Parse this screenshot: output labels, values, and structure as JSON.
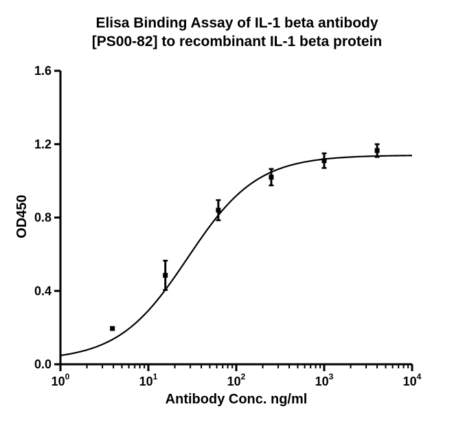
{
  "chart_data": {
    "type": "scatter",
    "title_lines": [
      "Elisa Binding Assay of IL-1 beta antibody",
      "[PS00-82] to recombinant IL-1 beta protein"
    ],
    "xlabel": "Antibody Conc. ng/ml",
    "ylabel": "OD450",
    "x_scale": "log10",
    "xlim": [
      1,
      10000
    ],
    "ylim": [
      0,
      1.6
    ],
    "x_ticks": [
      {
        "base": "10",
        "exp": "0",
        "value": 1
      },
      {
        "base": "10",
        "exp": "1",
        "value": 10
      },
      {
        "base": "10",
        "exp": "2",
        "value": 100
      },
      {
        "base": "10",
        "exp": "3",
        "value": 1000
      },
      {
        "base": "10",
        "exp": "4",
        "value": 10000
      }
    ],
    "y_ticks": [
      {
        "label": "0.0",
        "value": 0
      },
      {
        "label": "0.4",
        "value": 0.4
      },
      {
        "label": "0.8",
        "value": 0.8
      },
      {
        "label": "1.2",
        "value": 1.2
      },
      {
        "label": "1.6",
        "value": 1.6
      }
    ],
    "points": [
      {
        "x": 3.9,
        "y": 0.195,
        "err": 0.008
      },
      {
        "x": 15.6,
        "y": 0.485,
        "err": 0.08
      },
      {
        "x": 62.5,
        "y": 0.84,
        "err": 0.055
      },
      {
        "x": 250,
        "y": 1.02,
        "err": 0.045
      },
      {
        "x": 1000,
        "y": 1.11,
        "err": 0.04
      },
      {
        "x": 4000,
        "y": 1.165,
        "err": 0.035
      }
    ],
    "fit_curve": {
      "bottom": 0.02,
      "top": 1.14,
      "ec50": 28,
      "hill": 1.1
    },
    "grid": false,
    "legend": "none",
    "colors": {
      "marks": "#000000"
    }
  }
}
